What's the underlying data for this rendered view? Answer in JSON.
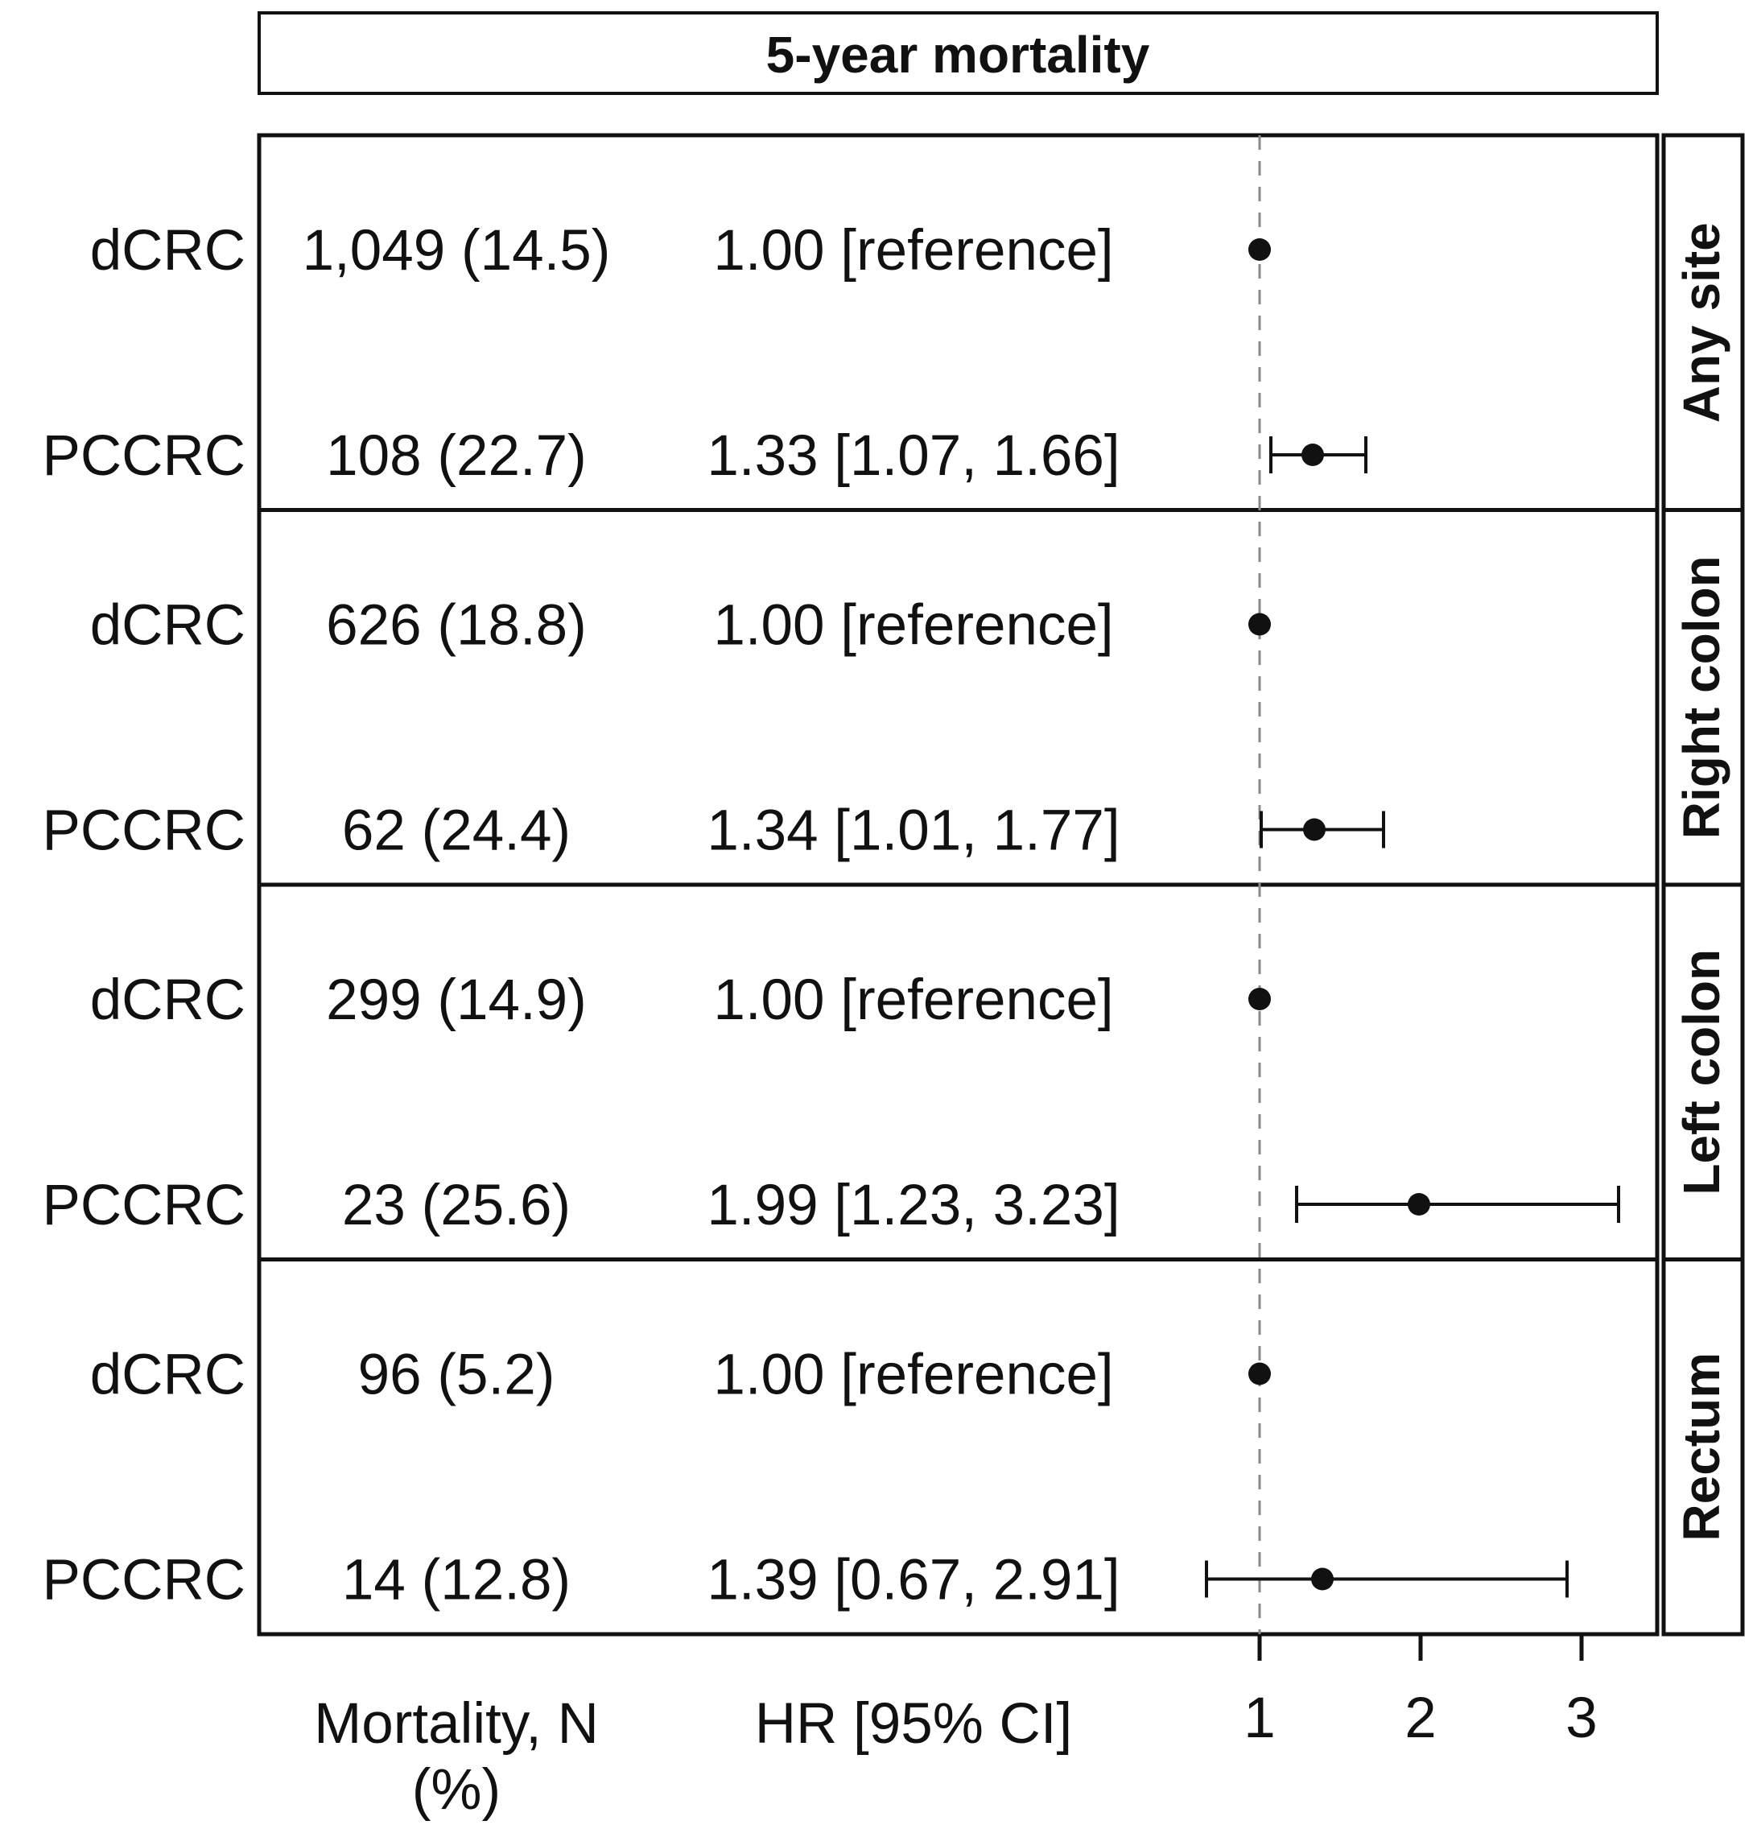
{
  "chart_data": {
    "type": "forest",
    "title": "5-year mortality",
    "columns": {
      "mortality": "Mortality, N (%)",
      "hr": "HR [95% CI]"
    },
    "x_axis": {
      "ticks": [
        1,
        2,
        3
      ],
      "xlim": [
        0.6,
        3.45
      ],
      "reference_line": 1
    },
    "panels": [
      {
        "label": "Any site",
        "rows": [
          {
            "group": "dCRC",
            "mortality": "1,049 (14.5)",
            "hr_text": "1.00 [reference]",
            "hr": 1.0,
            "lo": null,
            "hi": null
          },
          {
            "group": "PCCRC",
            "mortality": "108 (22.7)",
            "hr_text": "1.33 [1.07, 1.66]",
            "hr": 1.33,
            "lo": 1.07,
            "hi": 1.66
          }
        ]
      },
      {
        "label": "Right colon",
        "rows": [
          {
            "group": "dCRC",
            "mortality": "626 (18.8)",
            "hr_text": "1.00 [reference]",
            "hr": 1.0,
            "lo": null,
            "hi": null
          },
          {
            "group": "PCCRC",
            "mortality": "62 (24.4)",
            "hr_text": "1.34 [1.01, 1.77]",
            "hr": 1.34,
            "lo": 1.01,
            "hi": 1.77
          }
        ]
      },
      {
        "label": "Left colon",
        "rows": [
          {
            "group": "dCRC",
            "mortality": "299 (14.9)",
            "hr_text": "1.00 [reference]",
            "hr": 1.0,
            "lo": null,
            "hi": null
          },
          {
            "group": "PCCRC",
            "mortality": "23 (25.6)",
            "hr_text": "1.99 [1.23, 3.23]",
            "hr": 1.99,
            "lo": 1.23,
            "hi": 3.23
          }
        ]
      },
      {
        "label": "Rectum",
        "rows": [
          {
            "group": "dCRC",
            "mortality": "96 (5.2)",
            "hr_text": "1.00 [reference]",
            "hr": 1.0,
            "lo": null,
            "hi": null
          },
          {
            "group": "PCCRC",
            "mortality": "14 (12.8)",
            "hr_text": "1.39 [0.67, 2.91]",
            "hr": 1.39,
            "lo": 0.67,
            "hi": 2.91
          }
        ]
      }
    ],
    "colors": {
      "ink": "#111111",
      "reference_line": "#8a8a8a"
    }
  }
}
